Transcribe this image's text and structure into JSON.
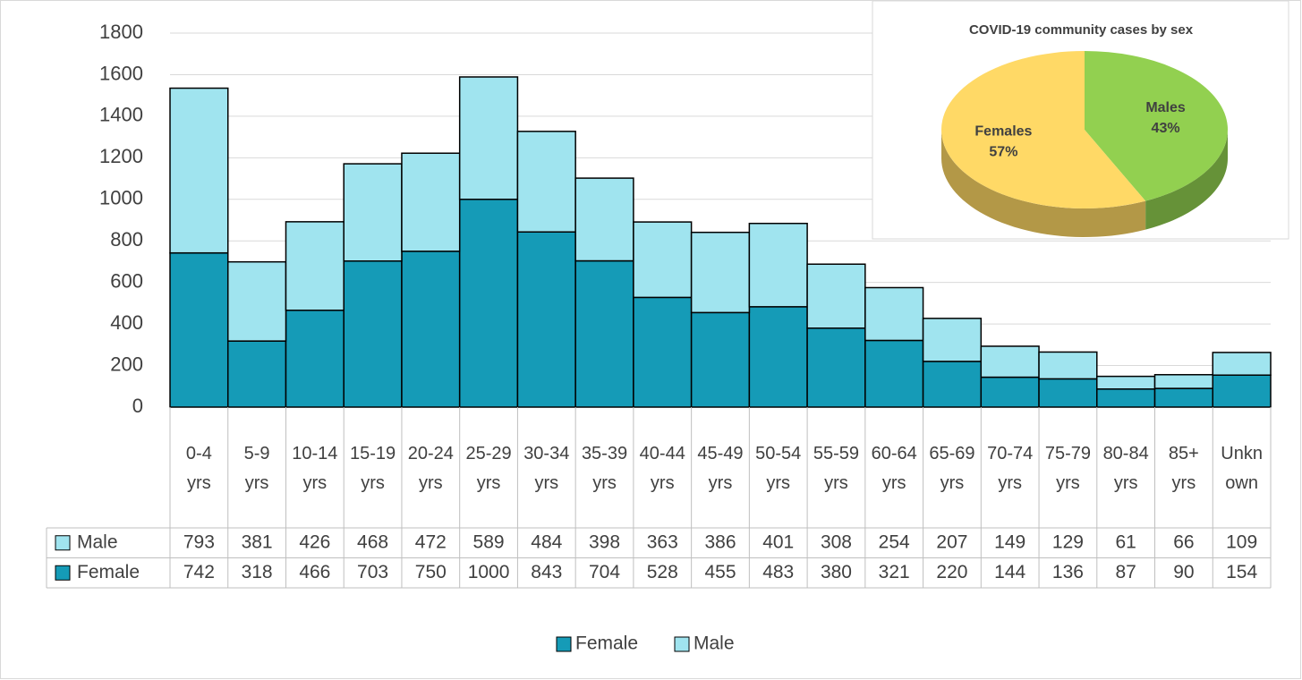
{
  "chart_data": [
    {
      "type": "bar",
      "stacked": true,
      "categories": [
        "0-4 yrs",
        "5-9 yrs",
        "10-14 yrs",
        "15-19 yrs",
        "20-24 yrs",
        "25-29 yrs",
        "30-34 yrs",
        "35-39 yrs",
        "40-44 yrs",
        "45-49 yrs",
        "50-54 yrs",
        "55-59 yrs",
        "60-64 yrs",
        "65-69 yrs",
        "70-74 yrs",
        "75-79 yrs",
        "80-84 yrs",
        "85+ yrs",
        "Unknown"
      ],
      "series": [
        {
          "name": "Female",
          "color": "#159bb7",
          "values": [
            742,
            318,
            466,
            703,
            750,
            1000,
            843,
            704,
            528,
            455,
            483,
            380,
            321,
            220,
            144,
            136,
            87,
            90,
            154
          ]
        },
        {
          "name": "Male",
          "color": "#a0e4ef",
          "values": [
            793,
            381,
            426,
            468,
            472,
            589,
            484,
            398,
            363,
            386,
            401,
            308,
            254,
            207,
            149,
            129,
            61,
            66,
            109
          ]
        }
      ],
      "ylim": [
        0,
        1800
      ],
      "yticks": [
        0,
        200,
        400,
        600,
        800,
        1000,
        1200,
        1400,
        1600,
        1800
      ],
      "grid": true,
      "data_table": true,
      "legend": "bottom"
    },
    {
      "type": "pie",
      "title": "COVID-19 community cases by sex",
      "categories": [
        "Males",
        "Females"
      ],
      "values": [
        43,
        57
      ],
      "value_labels": [
        "43%",
        "57%"
      ],
      "colors": [
        "#92d050",
        "#ffd966"
      ]
    }
  ]
}
